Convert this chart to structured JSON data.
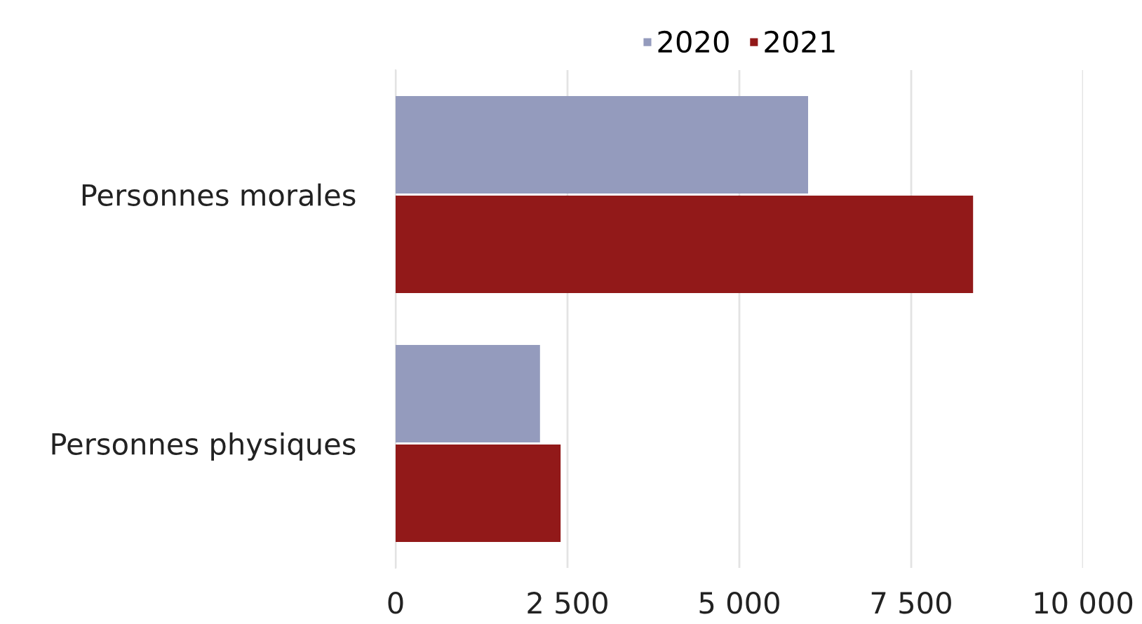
{
  "chart_data": {
    "type": "bar",
    "orientation": "horizontal",
    "categories": [
      "Personnes morales",
      "Personnes physiques"
    ],
    "series": [
      {
        "name": "2020",
        "color": "#949bbd",
        "values": [
          6000,
          2100
        ]
      },
      {
        "name": "2021",
        "color": "#921919",
        "values": [
          8400,
          2400
        ]
      }
    ],
    "xlim": [
      0,
      10000
    ],
    "xticks": [
      0,
      {
        "value": 2500,
        "label": "2 500"
      },
      {
        "value": 5000,
        "label": "5 000"
      },
      {
        "value": 7500,
        "label": "7 500"
      },
      {
        "value": 10000,
        "label": "10 000"
      }
    ],
    "grid": "x",
    "legend": "top"
  }
}
